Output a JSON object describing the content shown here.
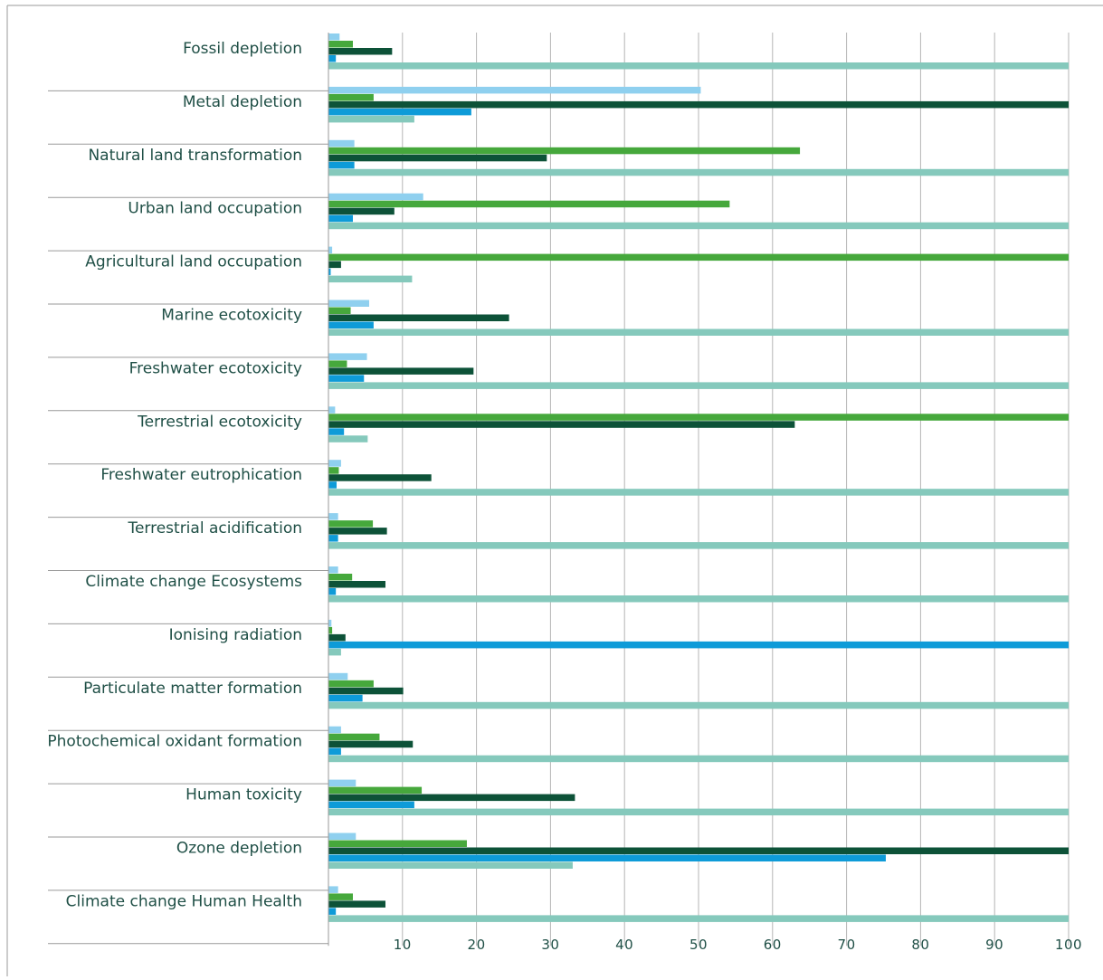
{
  "chart_data": {
    "type": "bar",
    "orientation": "horizontal",
    "title": "",
    "xlabel": "",
    "ylabel": "",
    "xlim": [
      0,
      100
    ],
    "xticks": [
      10,
      20,
      30,
      40,
      50,
      60,
      70,
      80,
      90,
      100
    ],
    "grid": true,
    "legend": "none",
    "categories": [
      "Fossil depletion",
      "Metal depletion",
      "Natural land transformation",
      "Urban land occupation",
      "Agricultural land occupation",
      "Marine ecotoxicity",
      "Freshwater ecotoxicity",
      "Terrestrial ecotoxicity",
      "Freshwater eutrophication",
      "Terrestrial acidification",
      "Climate change Ecosystems",
      "Ionising radiation",
      "Particulate matter formation",
      "Photochemical oxidant formation",
      "Human toxicity",
      "Ozone depletion",
      "Climate change Human Health"
    ],
    "series": [
      {
        "color": "#8fd0ef",
        "values": [
          1.5,
          50.3,
          3.5,
          12.8,
          0.5,
          5.5,
          5.2,
          0.9,
          1.7,
          1.3,
          1.3,
          0.4,
          2.6,
          1.7,
          3.7,
          3.7,
          1.3
        ]
      },
      {
        "color": "#46a83c",
        "values": [
          3.3,
          6.1,
          63.7,
          54.2,
          100,
          3.0,
          2.5,
          100,
          1.4,
          6.0,
          3.2,
          0.5,
          6.1,
          6.9,
          12.6,
          18.7,
          3.3
        ]
      },
      {
        "color": "#0d5238",
        "values": [
          8.6,
          100,
          29.5,
          8.9,
          1.7,
          24.4,
          19.6,
          63.0,
          13.9,
          7.9,
          7.7,
          2.3,
          10.1,
          11.4,
          33.3,
          100,
          7.7
        ]
      },
      {
        "color": "#0e9bd8",
        "values": [
          1.0,
          19.3,
          3.5,
          3.3,
          0.3,
          6.1,
          4.8,
          2.1,
          1.1,
          1.3,
          1.0,
          100,
          4.6,
          1.7,
          11.6,
          75.3,
          1.0
        ]
      },
      {
        "color": "#85c9bc",
        "values": [
          100,
          11.6,
          100,
          100,
          11.3,
          100,
          100,
          5.3,
          100,
          100,
          100,
          1.7,
          100,
          100,
          100,
          33.0,
          100
        ]
      }
    ]
  }
}
